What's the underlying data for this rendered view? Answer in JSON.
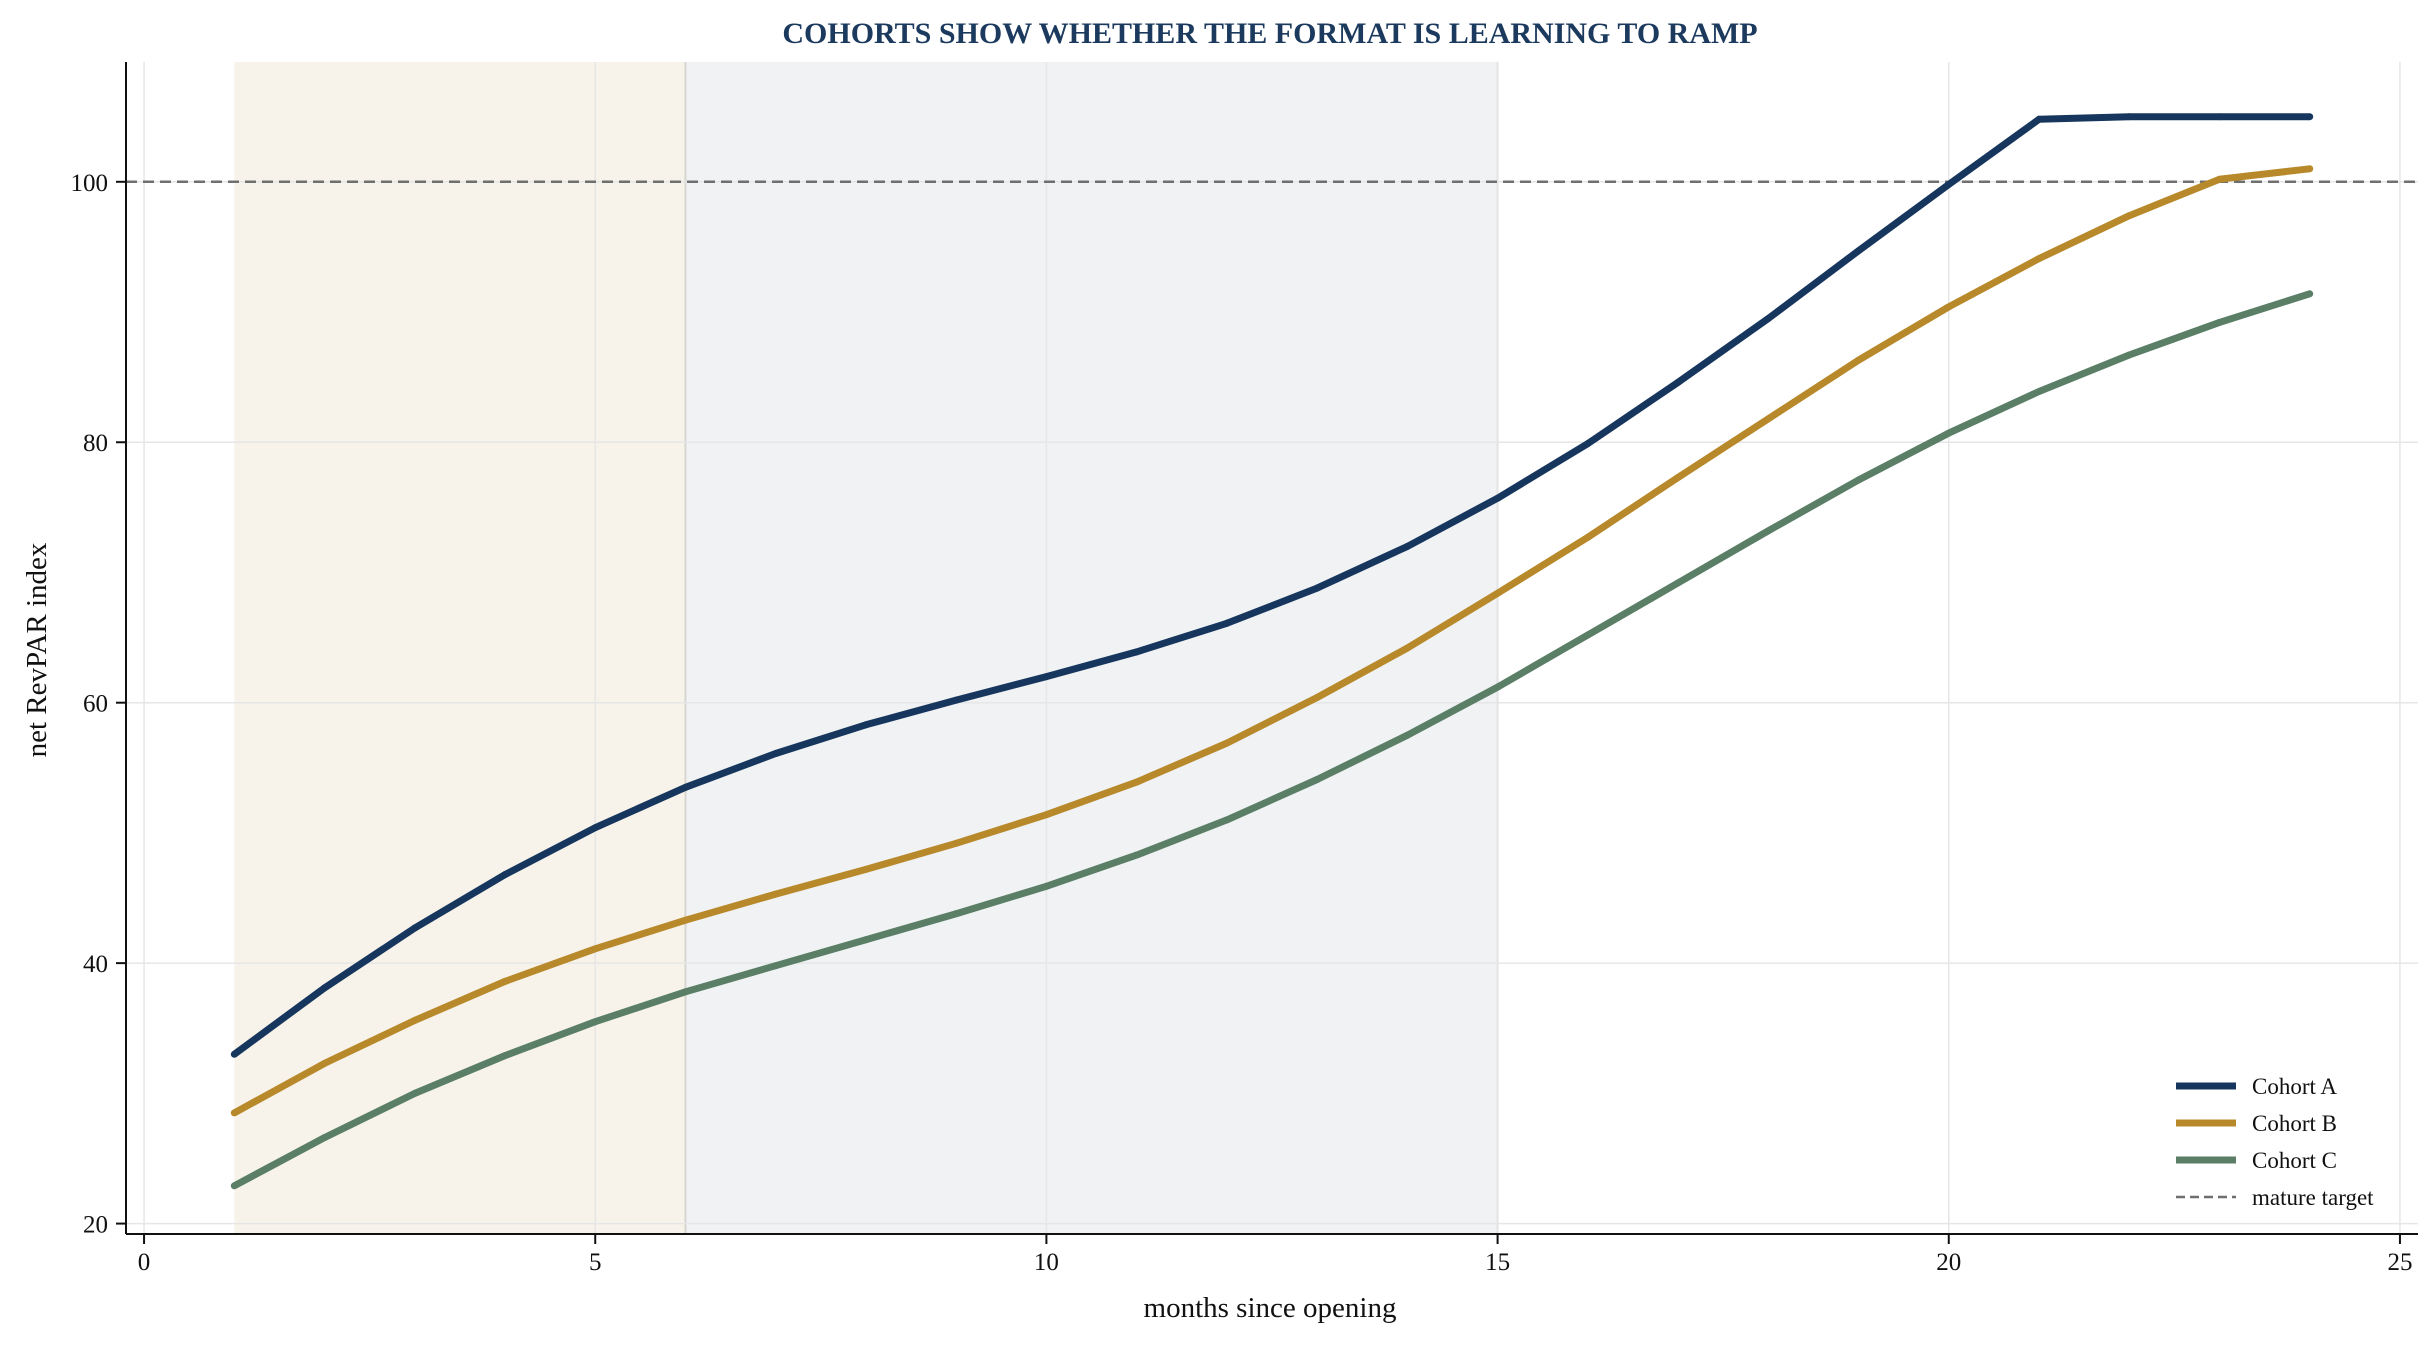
{
  "colors": {
    "title": "#1b3a5e",
    "cohort_a": "#17365d",
    "cohort_b": "#b8892a",
    "cohort_c": "#5a7f66",
    "target": "#6f6f6f",
    "band_early": "#f7f3ea",
    "band_mid": "#f0f2f4",
    "grid": "#e6e6e6",
    "axis": "#111111"
  },
  "chart_data": {
    "type": "line",
    "title": "COHORTS SHOW WHETHER THE FORMAT IS LEARNING TO RAMP",
    "xlabel": "months since opening",
    "ylabel": "net RevPAR index",
    "xlim": [
      -0.2,
      25.2
    ],
    "ylim": [
      19.2,
      109.2
    ],
    "xticks": [
      0,
      5,
      10,
      15,
      20,
      25
    ],
    "yticks": [
      20,
      40,
      60,
      80,
      100
    ],
    "grid": true,
    "legend_position": "bottom-right",
    "x": [
      1,
      2,
      3,
      4,
      5,
      6,
      7,
      8,
      9,
      10,
      11,
      12,
      13,
      14,
      15,
      16,
      17,
      18,
      19,
      20,
      21,
      22,
      23,
      24
    ],
    "series": [
      {
        "name": "Cohort A",
        "color_key": "cohort_a",
        "values": [
          33.0,
          38.1,
          42.7,
          46.8,
          50.4,
          53.5,
          56.1,
          58.3,
          60.2,
          62.0,
          63.9,
          66.1,
          68.8,
          72.0,
          75.7,
          79.9,
          84.6,
          89.5,
          94.7,
          99.8,
          104.8,
          105.0,
          105.0,
          105.0
        ]
      },
      {
        "name": "Cohort B",
        "color_key": "cohort_b",
        "values": [
          28.5,
          32.3,
          35.6,
          38.6,
          41.1,
          43.3,
          45.3,
          47.2,
          49.2,
          51.4,
          53.9,
          56.9,
          60.4,
          64.2,
          68.4,
          72.7,
          77.3,
          81.8,
          86.3,
          90.4,
          94.1,
          97.4,
          100.2,
          101.0
        ]
      },
      {
        "name": "Cohort C",
        "color_key": "cohort_c",
        "values": [
          22.9,
          26.6,
          30.0,
          32.9,
          35.5,
          37.8,
          39.8,
          41.8,
          43.8,
          45.9,
          48.3,
          51.0,
          54.1,
          57.5,
          61.2,
          65.2,
          69.2,
          73.2,
          77.1,
          80.7,
          83.9,
          86.7,
          89.2,
          91.4
        ]
      }
    ],
    "reference_line": {
      "name": "mature target",
      "y": 100,
      "style": "dashed",
      "color_key": "target"
    },
    "shaded_bands": [
      {
        "x_start": 1,
        "x_end": 6,
        "color_key": "band_early"
      },
      {
        "x_start": 6,
        "x_end": 15,
        "color_key": "band_mid"
      }
    ]
  }
}
